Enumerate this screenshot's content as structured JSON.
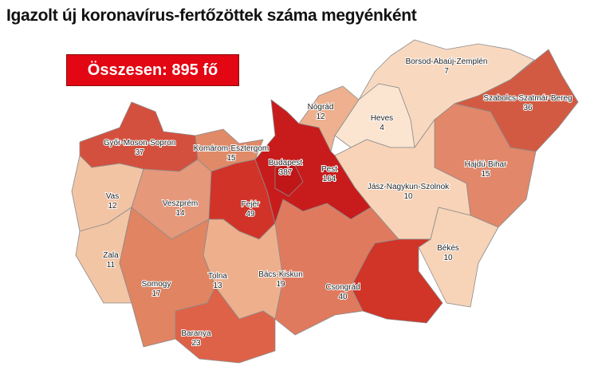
{
  "title": "Igazolt új koronavírus-fertőzöttek száma megyénként",
  "total_label": "Összesen: 895 fő",
  "counties": {
    "gyor": {
      "name": "Győr-Moson-Sopron",
      "value": "37",
      "color": "#d4503e"
    },
    "komarom": {
      "name": "Komárom-Esztergom",
      "value": "15",
      "color": "#e08a68"
    },
    "vas": {
      "name": "Vas",
      "value": "12",
      "color": "#f2c4a4"
    },
    "veszprem": {
      "name": "Veszprém",
      "value": "14",
      "color": "#e5987a"
    },
    "fejer": {
      "name": "Fejér",
      "value": "49",
      "color": "#d23328"
    },
    "budapest": {
      "name": "Budapest",
      "value": "387",
      "color": "#bf1618"
    },
    "pest": {
      "name": "Pest",
      "value": "164",
      "color": "#c81c1c"
    },
    "nograd": {
      "name": "Nógrád",
      "value": "12",
      "color": "#eeb08e"
    },
    "heves": {
      "name": "Heves",
      "value": "4",
      "color": "#fbe4d0"
    },
    "borsod": {
      "name": "Borsod-Abaúj-Zemplén",
      "value": "7",
      "color": "#f8d9c0"
    },
    "szabolcs": {
      "name": "Szabolcs-Szatmár-Bereg",
      "value": "36",
      "color": "#d35a42"
    },
    "hajdu": {
      "name": "Hajdú-Bihar",
      "value": "15",
      "color": "#e2876a"
    },
    "jnsz": {
      "name": "Jász-Nagykun-Szolnok",
      "value": "10",
      "color": "#f8d3b7"
    },
    "bekes": {
      "name": "Békés",
      "value": "10",
      "color": "#f7d3b7"
    },
    "csongrad": {
      "name": "Csongrád",
      "value": "40",
      "color": "#d03528"
    },
    "bacs": {
      "name": "Bács-Kiskun",
      "value": "19",
      "color": "#e07a5e"
    },
    "tolna": {
      "name": "Tolna",
      "value": "13",
      "color": "#eeaf8c"
    },
    "somogy": {
      "name": "Somogy",
      "value": "17",
      "color": "#e08462"
    },
    "zala": {
      "name": "Zala",
      "value": "11",
      "color": "#f2c5a5"
    },
    "baranya": {
      "name": "Baranya",
      "value": "23",
      "color": "#de6248"
    }
  }
}
